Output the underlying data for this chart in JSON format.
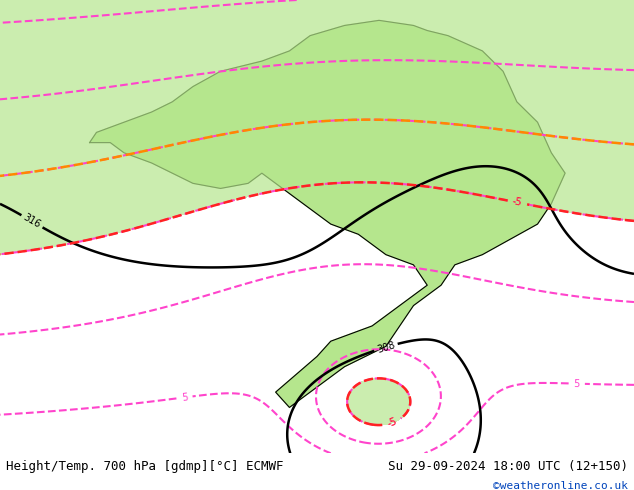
{
  "title_left": "Height/Temp. 700 hPa [gdmp][°C] ECMWF",
  "title_right": "Su 29-09-2024 18:00 UTC (12+150)",
  "watermark": "©weatheronline.co.uk",
  "land_color": "#b5e68d",
  "ocean_color": "#e0e0e0",
  "border_color": "#888888",
  "coast_color": "#000000",
  "contour_black": "#000000",
  "contour_pink": "#ff44cc",
  "contour_red": "#ff2222",
  "contour_orange": "#ff8800",
  "label_fontsize": 7,
  "title_fontsize": 9,
  "watermark_fontsize": 8,
  "figsize": [
    6.34,
    4.9
  ],
  "dpi": 100,
  "extent_lon_min": -30,
  "extent_lon_max": 62,
  "extent_lat_min": -47,
  "extent_lat_max": 42
}
